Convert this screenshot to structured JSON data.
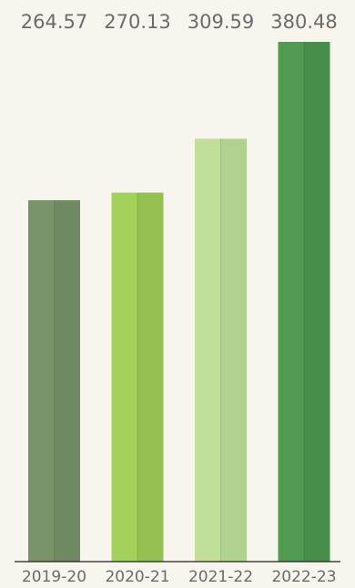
{
  "chart_data": {
    "type": "bar",
    "categories": [
      "2019-20",
      "2020-21",
      "2021-22",
      "2022-23"
    ],
    "values": [
      264.57,
      270.13,
      309.59,
      380.48
    ],
    "value_labels": [
      "264.57",
      "270.13",
      "309.59",
      "380.48"
    ],
    "title": "",
    "xlabel": "",
    "ylabel": "",
    "ylim": [
      0,
      380.48
    ],
    "grid": false,
    "colors": [
      "#7a9469",
      "#a4d05c",
      "#c2df9a",
      "#529b52"
    ],
    "colors_dark": [
      "#6f8a63",
      "#93c050",
      "#b0d28e",
      "#478e4b"
    ]
  }
}
